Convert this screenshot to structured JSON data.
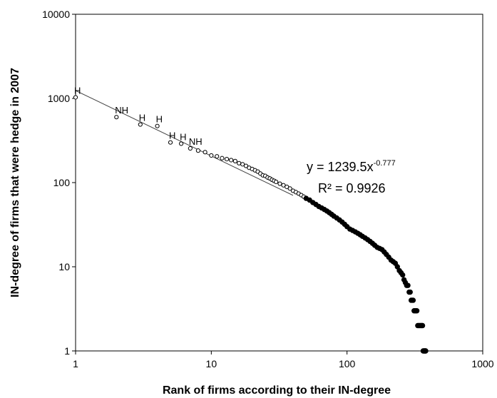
{
  "chart_data": {
    "type": "scatter",
    "title": "",
    "xlabel": "Rank of firms according to their IN-degree",
    "ylabel": "IN-degree of firms that were hedge in 2007",
    "x_scale": "log",
    "y_scale": "log",
    "xlim": [
      1,
      1000
    ],
    "ylim": [
      1,
      10000
    ],
    "x_ticks": [
      "1",
      "10",
      "100",
      "1000"
    ],
    "y_ticks": [
      "1",
      "10",
      "100",
      "1000",
      "10000"
    ],
    "grid": false,
    "legend": "none",
    "marker_color": "#000000",
    "trendline": {
      "equation_base": "y = 1239.5x",
      "equation_exponent": "-0.777",
      "r_squared": "R² = 0.9926",
      "coefficient": 1239.5,
      "exponent": -0.777
    },
    "labeled_points": [
      {
        "x": 1,
        "y": 1030,
        "label": "H"
      },
      {
        "x": 2,
        "y": 600,
        "label": "NH"
      },
      {
        "x": 3,
        "y": 490,
        "label": "H"
      },
      {
        "x": 4,
        "y": 470,
        "label": "H"
      },
      {
        "x": 5,
        "y": 300,
        "label": "H"
      },
      {
        "x": 6,
        "y": 290,
        "label": "H"
      },
      {
        "x": 7,
        "y": 255,
        "label": "NH"
      }
    ],
    "series": [
      {
        "x": [
          1,
          2,
          3,
          4,
          5,
          6,
          7,
          8,
          9,
          10,
          11,
          12,
          13,
          14,
          15,
          16,
          17,
          18,
          19,
          20,
          21,
          22,
          23,
          24,
          25,
          26,
          27,
          28,
          29,
          30,
          32,
          34,
          36,
          38,
          40,
          42,
          44,
          46,
          48,
          50,
          53,
          56,
          59,
          62,
          65,
          68,
          71,
          74,
          77,
          80,
          84,
          88,
          92,
          96,
          100,
          105,
          110,
          115,
          120,
          125,
          130,
          136,
          142,
          148,
          154,
          160,
          167,
          174,
          181,
          188,
          195,
          203,
          211,
          219,
          227,
          235,
          243,
          250,
          257,
          263,
          269,
          275,
          281,
          287,
          292,
          297,
          302,
          307,
          312,
          317,
          322,
          327,
          332,
          337,
          342,
          347,
          352,
          356,
          360,
          364,
          368,
          372,
          375,
          378,
          380
        ],
        "y": [
          1030,
          600,
          490,
          470,
          300,
          290,
          255,
          240,
          230,
          210,
          205,
          195,
          190,
          185,
          180,
          170,
          165,
          158,
          150,
          145,
          140,
          135,
          128,
          122,
          120,
          115,
          112,
          108,
          105,
          102,
          97,
          93,
          89,
          85,
          80,
          77,
          74,
          71,
          68,
          65,
          62,
          58,
          55,
          52,
          50,
          48,
          46,
          44,
          42,
          40,
          38,
          36,
          34,
          32,
          30,
          28,
          27,
          26,
          25,
          24,
          23,
          22,
          21,
          20,
          19,
          18,
          17,
          16.5,
          16,
          15,
          14,
          13,
          12,
          11.5,
          11,
          10,
          9,
          8.5,
          8,
          7,
          6.5,
          6,
          6,
          5,
          5,
          4,
          4,
          4,
          3,
          3,
          3,
          3,
          2,
          2,
          2,
          2,
          2,
          2,
          2,
          1,
          1,
          1,
          1,
          1,
          1
        ]
      }
    ]
  }
}
